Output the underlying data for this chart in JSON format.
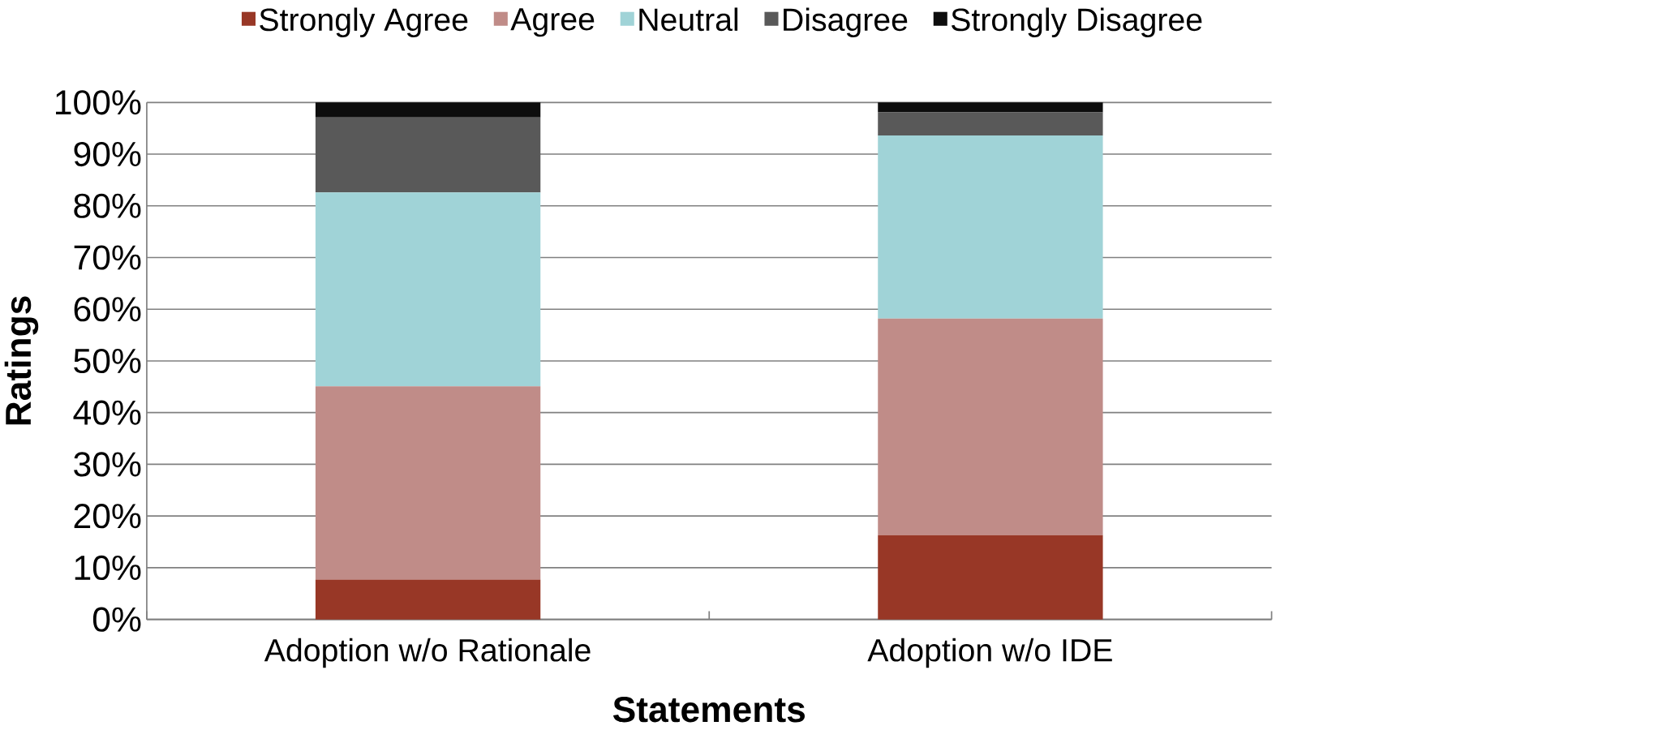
{
  "chart_data": {
    "type": "bar",
    "stacked": true,
    "xlabel": "Statements",
    "ylabel": "Ratings",
    "categories": [
      "Adoption w/o Rationale",
      "Adoption w/o IDE"
    ],
    "series": [
      {
        "name": "Strongly Agree",
        "color": "#983726",
        "values": [
          7.7,
          16.3
        ]
      },
      {
        "name": "Agree",
        "color": "#c08c88",
        "values": [
          37.4,
          41.9
        ]
      },
      {
        "name": "Neutral",
        "color": "#a0d3d7",
        "values": [
          37.5,
          35.4
        ]
      },
      {
        "name": "Disagree",
        "color": "#595959",
        "values": [
          14.5,
          4.5
        ]
      },
      {
        "name": "Strongly Disagree",
        "color": "#0d0d0d",
        "values": [
          2.9,
          1.9
        ]
      }
    ],
    "ylim": [
      0,
      100
    ],
    "yticks": [
      {
        "value": 0,
        "label": "0%"
      },
      {
        "value": 10,
        "label": "10%"
      },
      {
        "value": 20,
        "label": "20%"
      },
      {
        "value": 30,
        "label": "30%"
      },
      {
        "value": 40,
        "label": "40%"
      },
      {
        "value": 50,
        "label": "50%"
      },
      {
        "value": 60,
        "label": "60%"
      },
      {
        "value": 70,
        "label": "70%"
      },
      {
        "value": 80,
        "label": "80%"
      },
      {
        "value": 90,
        "label": "90%"
      },
      {
        "value": 100,
        "label": "100%"
      }
    ],
    "grid": "y",
    "legend": "top"
  }
}
